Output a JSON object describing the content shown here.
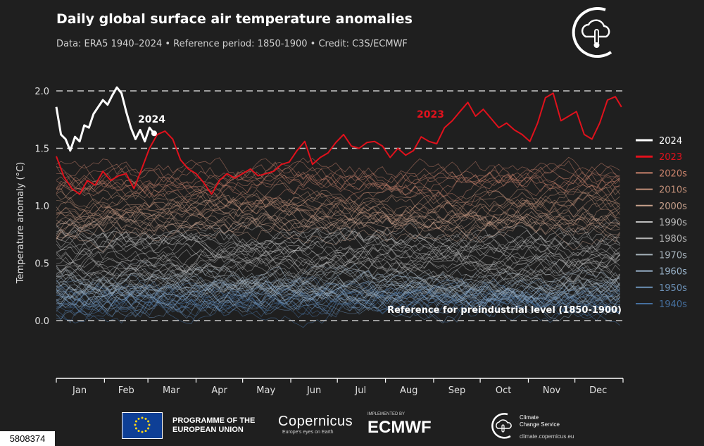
{
  "header": {
    "title": "Daily global surface air temperature anomalies",
    "subtitle": "Data: ERA5 1940–2024 • Reference period: 1850-1900 • Credit: C3S/ECMWF"
  },
  "chart_data": {
    "type": "line",
    "title": "Daily global surface air temperature anomalies",
    "xlabel": "",
    "ylabel": "Temperature anomaly (°C)",
    "ylim": [
      -0.5,
      2.1
    ],
    "y_ticks": [
      "2.0",
      "1.5",
      "1.0",
      "0.5",
      "0.0"
    ],
    "y_tick_values": [
      2.0,
      1.5,
      1.0,
      0.5,
      0.0
    ],
    "x_ticks": [
      "Jan",
      "Feb",
      "Mar",
      "Apr",
      "May",
      "Jun",
      "Jul",
      "Aug",
      "Sep",
      "Oct",
      "Nov",
      "Dec"
    ],
    "x_tick_days": [
      16,
      46,
      75,
      106,
      136,
      167,
      197,
      228,
      259,
      289,
      320,
      350
    ],
    "xlim": [
      1,
      366
    ],
    "grid": "dashed horizontal lines at 0.0, 1.5, 2.0",
    "legend_position": "right",
    "annotations": {
      "reference": "Reference for preindustrial level (1850-1900)",
      "label_2024": "2024",
      "label_2023": "2023"
    },
    "legend": [
      {
        "name": "2024",
        "color": "#ffffff"
      },
      {
        "name": "2023",
        "color": "#e0111c"
      },
      {
        "name": "2020s",
        "color": "#c9826b"
      },
      {
        "name": "2010s",
        "color": "#c18f78"
      },
      {
        "name": "2000s",
        "color": "#c7a18c"
      },
      {
        "name": "1990s",
        "color": "#bdbdbd"
      },
      {
        "name": "1980s",
        "color": "#b5b5b5"
      },
      {
        "name": "1970s",
        "color": "#a6b2bb"
      },
      {
        "name": "1960s",
        "color": "#9bb5cc"
      },
      {
        "name": "1950s",
        "color": "#6d92b8"
      },
      {
        "name": "1940s",
        "color": "#456f9e"
      }
    ],
    "decade_bands": [
      {
        "decade": "1940s",
        "base": 0.18,
        "color": "#4a76a8"
      },
      {
        "decade": "1950s",
        "base": 0.2,
        "color": "#6d92b8"
      },
      {
        "decade": "1960s",
        "base": 0.26,
        "color": "#9bb5cc"
      },
      {
        "decade": "1970s",
        "base": 0.34,
        "color": "#a6b2bb"
      },
      {
        "decade": "1980s",
        "base": 0.5,
        "color": "#b5b5b5"
      },
      {
        "decade": "1990s",
        "base": 0.66,
        "color": "#bdbdbd"
      },
      {
        "decade": "2000s",
        "base": 0.84,
        "color": "#c7a18c"
      },
      {
        "decade": "2010s",
        "base": 1.02,
        "color": "#c18f78"
      },
      {
        "decade": "2020s",
        "base": 1.22,
        "color": "#c9826b"
      }
    ],
    "series": [
      {
        "name": "2024",
        "color": "#ffffff",
        "x": [
          1,
          4,
          7,
          10,
          13,
          16,
          19,
          22,
          25,
          28,
          31,
          34,
          37,
          40,
          43,
          46,
          49,
          52,
          55,
          58,
          61,
          64
        ],
        "y": [
          1.86,
          1.62,
          1.58,
          1.48,
          1.6,
          1.56,
          1.7,
          1.68,
          1.8,
          1.86,
          1.92,
          1.88,
          1.96,
          2.03,
          1.98,
          1.82,
          1.68,
          1.58,
          1.66,
          1.56,
          1.68,
          1.63
        ]
      },
      {
        "name": "2023",
        "color": "#e0111c",
        "x": [
          1,
          6,
          11,
          16,
          21,
          26,
          31,
          36,
          41,
          46,
          51,
          56,
          61,
          66,
          71,
          76,
          81,
          86,
          91,
          96,
          101,
          106,
          111,
          116,
          121,
          126,
          131,
          136,
          141,
          146,
          151,
          156,
          161,
          166,
          171,
          176,
          181,
          186,
          191,
          196,
          201,
          206,
          211,
          216,
          221,
          226,
          231,
          236,
          241,
          246,
          251,
          256,
          261,
          266,
          271,
          276,
          281,
          286,
          291,
          296,
          301,
          306,
          311,
          316,
          321,
          326,
          331,
          336,
          341,
          346,
          351,
          356,
          361,
          365
        ],
        "y": [
          1.43,
          1.25,
          1.15,
          1.1,
          1.22,
          1.18,
          1.3,
          1.22,
          1.26,
          1.28,
          1.15,
          1.32,
          1.5,
          1.62,
          1.65,
          1.58,
          1.4,
          1.32,
          1.28,
          1.2,
          1.1,
          1.22,
          1.28,
          1.24,
          1.28,
          1.32,
          1.26,
          1.28,
          1.3,
          1.36,
          1.38,
          1.48,
          1.56,
          1.36,
          1.42,
          1.46,
          1.55,
          1.62,
          1.52,
          1.5,
          1.55,
          1.56,
          1.52,
          1.42,
          1.5,
          1.44,
          1.48,
          1.6,
          1.56,
          1.54,
          1.68,
          1.74,
          1.82,
          1.9,
          1.78,
          1.84,
          1.76,
          1.68,
          1.72,
          1.66,
          1.62,
          1.56,
          1.72,
          1.94,
          1.98,
          1.74,
          1.78,
          1.82,
          1.62,
          1.58,
          1.72,
          1.92,
          1.95,
          1.86
        ]
      }
    ]
  },
  "footer": {
    "programme": "PROGRAMME OF THE EUROPEAN UNION",
    "programme_line1": "PROGRAMME OF THE",
    "programme_line2": "EUROPEAN UNION",
    "copernicus": "Copernicus",
    "copernicus_tagline": "Europe's eyes on Earth",
    "implemented_by": "IMPLEMENTED BY",
    "ecmwf": "ECMWF",
    "c3s_line1": "Climate",
    "c3s_line2": "Change Service",
    "c3s_url": "climate.copernicus.eu",
    "image_id": "5808374"
  }
}
